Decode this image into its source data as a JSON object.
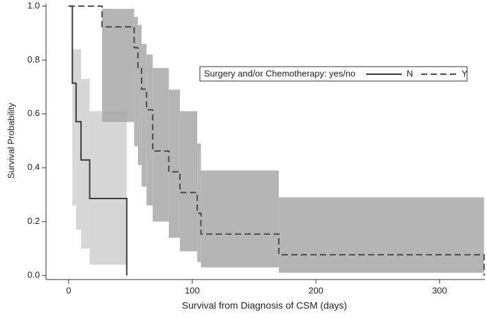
{
  "chart_data": {
    "type": "km",
    "xlabel": "Survival from Diagnosis of CSM (days)",
    "ylabel": "Survival Probability",
    "legend_title": "Surgery and/or Chemotherapy: yes/no",
    "xlim": [
      -18.3,
      336.7
    ],
    "ylim": [
      -0.015,
      1.01
    ],
    "xticks": [
      0,
      100,
      200,
      300
    ],
    "yticks": [
      {
        "value": 0,
        "label": "0.0"
      },
      {
        "value": 0.2,
        "label": "0.2"
      },
      {
        "value": 0.4,
        "label": "0.4"
      },
      {
        "value": 0.6,
        "label": "0.6"
      },
      {
        "value": 0.8,
        "label": "0.8"
      },
      {
        "value": 1,
        "label": "1.0"
      }
    ],
    "series": [
      {
        "name": "N",
        "color": "#3a3a3a",
        "linestyle": "solid",
        "band_color": "#d6d6d6",
        "x": [
          0,
          3,
          6,
          10,
          17,
          47
        ],
        "values": [
          1,
          0.714,
          0.571,
          0.429,
          0.286,
          0
        ],
        "lower": [
          null,
          0.26,
          0.17,
          0.1,
          0.04,
          null
        ],
        "upper": [
          null,
          0.84,
          0.84,
          0.73,
          0.61,
          null
        ]
      },
      {
        "name": "Y",
        "color": "#4a4a4a",
        "linestyle": "dashed",
        "band_color": "#a8a8a8",
        "x": [
          0,
          27,
          53,
          56,
          59,
          63,
          68,
          81,
          90,
          104,
          107,
          170,
          336
        ],
        "values": [
          1,
          0.923,
          0.846,
          0.769,
          0.692,
          0.615,
          0.462,
          0.385,
          0.308,
          0.231,
          0.154,
          0.077,
          0
        ],
        "lower": [
          null,
          0.57,
          0.48,
          0.41,
          0.33,
          0.26,
          0.2,
          0.14,
          0.09,
          0.05,
          0.03,
          0.01,
          null
        ],
        "upper": [
          null,
          0.99,
          0.96,
          0.93,
          0.86,
          0.82,
          0.77,
          0.69,
          0.61,
          0.49,
          0.39,
          0.29,
          null
        ]
      }
    ]
  }
}
